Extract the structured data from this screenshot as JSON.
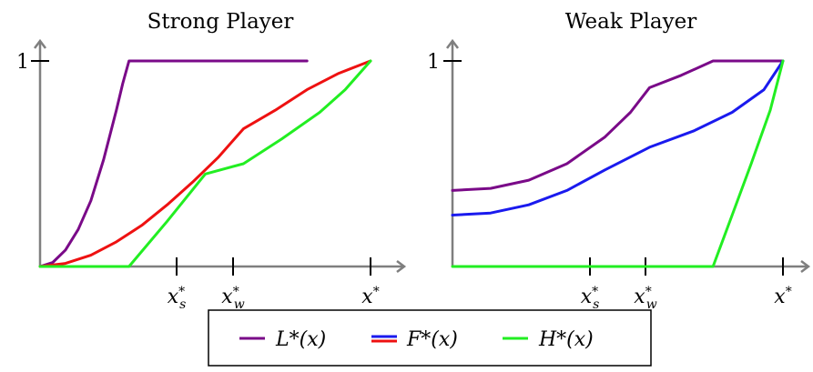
{
  "chart_data": [
    {
      "type": "line",
      "title": "Strong Player",
      "x_ticks": [
        "x_s^*",
        "x_w^*",
        "x^*"
      ],
      "y_ticks": [
        "1"
      ],
      "series": [
        {
          "name": "L*(x)",
          "color": "#7a0a88",
          "points": [
            [
              0,
              0
            ],
            [
              0.1,
              0.02
            ],
            [
              0.2,
              0.08
            ],
            [
              0.3,
              0.18
            ],
            [
              0.4,
              0.32
            ],
            [
              0.5,
              0.52
            ],
            [
              0.6,
              0.76
            ],
            [
              0.65,
              0.89
            ],
            [
              0.7,
              1.0
            ],
            [
              1.6,
              1.0
            ],
            [
              2.1,
              1.0
            ]
          ]
        },
        {
          "name": "F*(x)",
          "color": "#ee1111",
          "points": [
            [
              0,
              0
            ],
            [
              0.2,
              0.015
            ],
            [
              0.4,
              0.055
            ],
            [
              0.6,
              0.12
            ],
            [
              0.8,
              0.2
            ],
            [
              1.0,
              0.3
            ],
            [
              1.2,
              0.41
            ],
            [
              1.4,
              0.53
            ],
            [
              1.6,
              0.67
            ],
            [
              1.85,
              0.76
            ],
            [
              2.1,
              0.86
            ],
            [
              2.35,
              0.94
            ],
            [
              2.6,
              1.0
            ]
          ]
        },
        {
          "name": "H*(x)",
          "color": "#22ee22",
          "points": [
            [
              0,
              0
            ],
            [
              0.7,
              0.0
            ],
            [
              1.0,
              0.22
            ],
            [
              1.3,
              0.45
            ],
            [
              1.6,
              0.5
            ],
            [
              1.9,
              0.62
            ],
            [
              2.2,
              0.75
            ],
            [
              2.4,
              0.86
            ],
            [
              2.6,
              1.0
            ]
          ]
        }
      ]
    },
    {
      "type": "line",
      "title": "Weak Player",
      "x_ticks": [
        "x_s^*",
        "x_w^*",
        "x^*"
      ],
      "y_ticks": [
        "1"
      ],
      "series": [
        {
          "name": "L*(x)",
          "color": "#7a0a88",
          "points": [
            [
              0,
              0.37
            ],
            [
              0.3,
              0.38
            ],
            [
              0.6,
              0.42
            ],
            [
              0.9,
              0.5
            ],
            [
              1.2,
              0.63
            ],
            [
              1.4,
              0.75
            ],
            [
              1.55,
              0.87
            ],
            [
              1.8,
              0.93
            ],
            [
              2.05,
              1.0
            ],
            [
              2.6,
              1.0
            ]
          ]
        },
        {
          "name": "F*(x)",
          "color": "#1a1aee",
          "points": [
            [
              0,
              0.25
            ],
            [
              0.3,
              0.26
            ],
            [
              0.6,
              0.3
            ],
            [
              0.9,
              0.37
            ],
            [
              1.2,
              0.47
            ],
            [
              1.55,
              0.58
            ],
            [
              1.9,
              0.66
            ],
            [
              2.2,
              0.75
            ],
            [
              2.45,
              0.86
            ],
            [
              2.6,
              1.0
            ]
          ]
        },
        {
          "name": "H*(x)",
          "color": "#22ee22",
          "points": [
            [
              0,
              0
            ],
            [
              1.55,
              0
            ],
            [
              2.05,
              0
            ],
            [
              2.2,
              0.25
            ],
            [
              2.35,
              0.5
            ],
            [
              2.5,
              0.76
            ],
            [
              2.6,
              1.0
            ]
          ]
        }
      ]
    }
  ],
  "legend": {
    "items": [
      {
        "label": "L*(x)",
        "color": "#7a0a88"
      },
      {
        "label": "F*(x)",
        "color": "#ee1111",
        "color2": "#1a1aee"
      },
      {
        "label": "H*(x)",
        "color": "#22ee22"
      }
    ]
  }
}
